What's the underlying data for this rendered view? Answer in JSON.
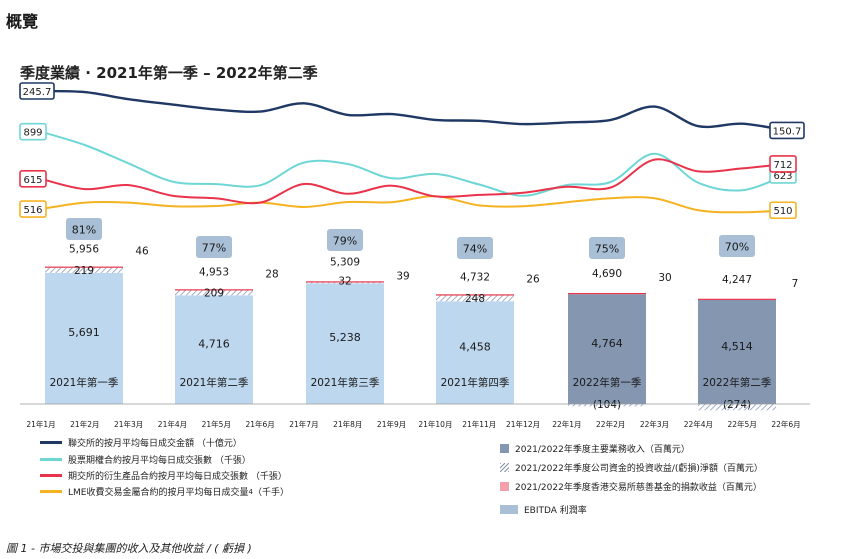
{
  "page": {
    "heading": "概覽",
    "subtitle": "季度業績 · 2021年第一季 – 2022年第二季",
    "caption": "圖 1 - 市場交投與集團的收入及其他收益 / ( 虧損 )"
  },
  "colors": {
    "hkex_turnover": "#1f3864",
    "options": "#6fd6d6",
    "derivatives": "#e8334a",
    "lme": "#f5b221",
    "bar_2021": "#bdd7ee",
    "bar_2022": "#8496b0",
    "investment": "#c8cfe0",
    "charity": "#e8334a",
    "ebitda": "#a9bfd6"
  },
  "chart_data": [
    {
      "type": "line",
      "months": [
        "21年1月",
        "21年2月",
        "21年3月",
        "21年4月",
        "21年5月",
        "21年6月",
        "21年7月",
        "21年8月",
        "21年9月",
        "21年10月",
        "21年11月",
        "21年12月",
        "22年1月",
        "22年2月",
        "22年3月",
        "22年4月",
        "22年5月",
        "22年6月"
      ],
      "series": [
        {
          "name": "聯交所的按月平均每日成交金額 （十億元）",
          "key": "hkex_turnover",
          "values": [
            245.7,
            243,
            226,
            213,
            201,
            196,
            216,
            188,
            190,
            176,
            174,
            166,
            170,
            176,
            208,
            161,
            167,
            150.7
          ],
          "start_label": "245.7",
          "end_label": "150.7"
        },
        {
          "name": "股票期權合約按月平均每日成交張數 （千張）",
          "key": "options",
          "values": [
            899,
            814,
            697,
            581,
            565,
            557,
            702,
            693,
            602,
            630,
            562,
            490,
            559,
            578,
            759,
            573,
            526,
            623
          ],
          "start_label": "899",
          "end_label": "623"
        },
        {
          "name": "期交所的衍生產品合約按月平均每日成交張數 （千張）",
          "key": "derivatives",
          "values": [
            615,
            548,
            574,
            505,
            487,
            460,
            581,
            517,
            570,
            500,
            510,
            524,
            563,
            558,
            740,
            663,
            683,
            712
          ],
          "start_label": "615",
          "end_label": "712"
        },
        {
          "name": "LME收費交易金屬合約的按月平均每日成交量",
          "name_sup": "4",
          "name_tail": " （千手）",
          "key": "lme",
          "values": [
            516,
            548,
            548,
            530,
            531,
            548,
            526,
            551,
            550,
            580,
            534,
            530,
            550,
            570,
            570,
            510,
            500,
            510
          ],
          "start_label": "516",
          "end_label": "510"
        }
      ]
    },
    {
      "type": "bar",
      "stacked": true,
      "categories": [
        "2021年第一季",
        "2021年第二季",
        "2021年第三季",
        "2021年第四季",
        "2022年第一季",
        "2022年第二季"
      ],
      "series": [
        {
          "name": "2021/2022年季度主要業務收入（百萬元）",
          "key": "core",
          "values": [
            5691,
            4716,
            5238,
            4458,
            4764,
            4514
          ]
        },
        {
          "name": "2021/2022年季度公司資金的投資收益/(虧損)淨額（百萬元）",
          "key": "investment",
          "values": [
            219,
            209,
            32,
            248,
            -104,
            -274
          ]
        },
        {
          "name": "2021/2022年季度香港交易所慈善基金的捐款收益（百萬元）",
          "key": "charity",
          "values": [
            46,
            28,
            39,
            26,
            30,
            7
          ]
        }
      ],
      "totals": [
        5956,
        4953,
        5309,
        4732,
        4690,
        4247
      ],
      "labels": {
        "core": [
          "5,691",
          "4,716",
          "5,238",
          "4,458",
          "4,764",
          "4,514"
        ],
        "investment": [
          "219",
          "209",
          "32",
          "248",
          "(104)",
          "(274)"
        ],
        "charity": [
          "46",
          "28",
          "39",
          "26",
          "30",
          "7"
        ],
        "totals": [
          "5,956",
          "4,953",
          "5,309",
          "4,732",
          "4,690",
          "4,247"
        ]
      },
      "ebitda_margin": {
        "name": "EBITDA 利潤率",
        "values": [
          "81%",
          "77%",
          "79%",
          "74%",
          "75%",
          "70%"
        ]
      }
    }
  ]
}
